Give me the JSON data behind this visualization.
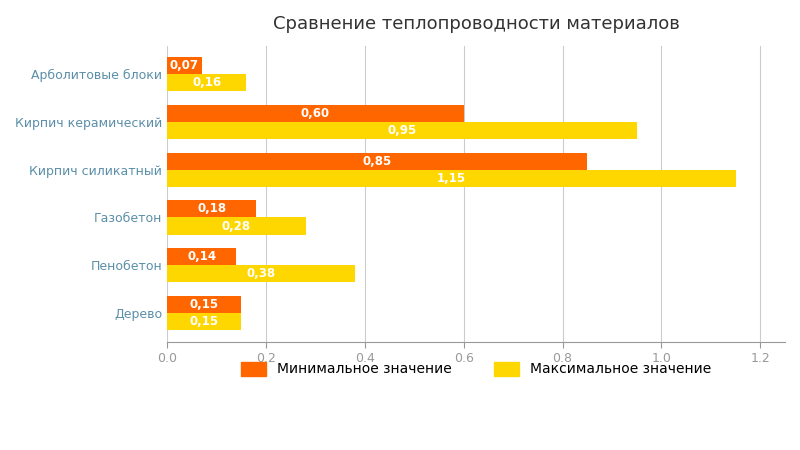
{
  "title": "Сравнение теплопроводности материалов",
  "categories": [
    "Дерево",
    "Пенобетон",
    "Газобетон",
    "Кирпич силикатный",
    "Кирпич керамический",
    "Арболитовые блоки"
  ],
  "min_values": [
    0.15,
    0.14,
    0.18,
    0.85,
    0.6,
    0.07
  ],
  "max_values": [
    0.15,
    0.38,
    0.28,
    1.15,
    0.95,
    0.16
  ],
  "min_color": "#FF6600",
  "max_color": "#FFD700",
  "bar_height": 0.36,
  "xlim": [
    0,
    1.25
  ],
  "xticks": [
    0.0,
    0.2,
    0.4,
    0.6,
    0.8,
    1.0,
    1.2
  ],
  "legend_min": "Минимальное значение",
  "legend_max": "Максимальное значение",
  "background_color": "#FFFFFF",
  "grid_color": "#CCCCCC",
  "label_color": "#5B8FA8",
  "title_color": "#333333",
  "value_fontsize": 8.5,
  "label_fontsize": 9,
  "title_fontsize": 13
}
